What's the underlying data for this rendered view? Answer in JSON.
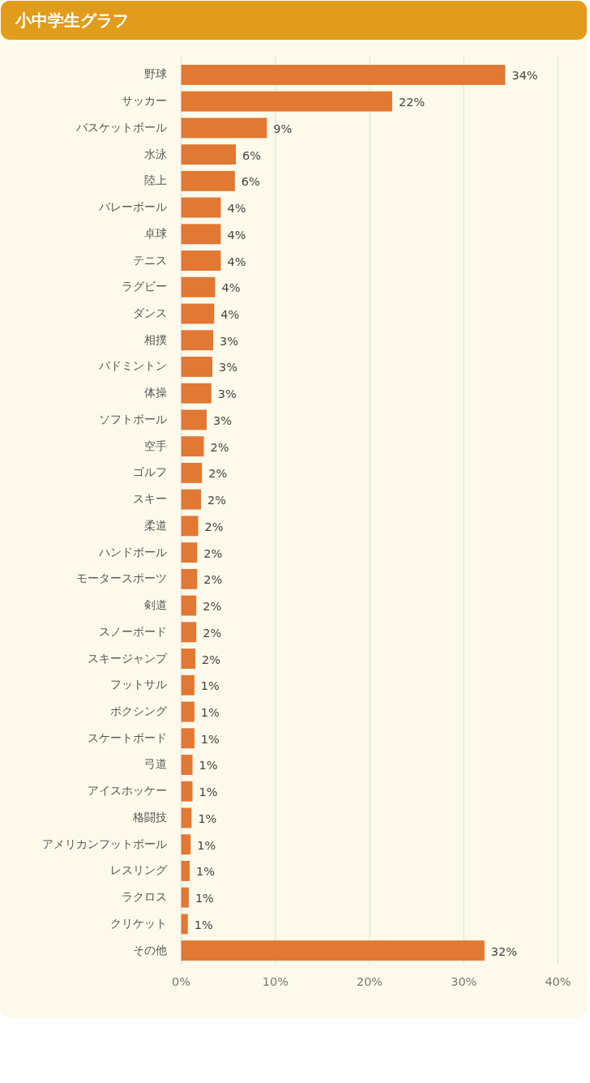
{
  "chart_data": {
    "type": "bar",
    "orientation": "horizontal",
    "title": "小中学生グラフ",
    "categories": [
      "野球",
      "サッカー",
      "バスケットボール",
      "水泳",
      "陸上",
      "バレーボール",
      "卓球",
      "テニス",
      "ラグビー",
      "ダンス",
      "相撲",
      "バドミントン",
      "体操",
      "ソフトボール",
      "空手",
      "ゴルフ",
      "スキー",
      "柔道",
      "ハンドボール",
      "モータースポーツ",
      "剣道",
      "スノーボード",
      "スキージャンプ",
      "フットサル",
      "ボクシング",
      "スケートボード",
      "弓道",
      "アイスホッケー",
      "格闘技",
      "アメリカンフットボール",
      "レスリング",
      "ラクロス",
      "クリケット",
      "その他"
    ],
    "values": [
      34.4,
      22.4,
      9.1,
      5.8,
      5.7,
      4.2,
      4.2,
      4.2,
      3.6,
      3.5,
      3.4,
      3.3,
      3.2,
      2.7,
      2.4,
      2.2,
      2.1,
      1.8,
      1.7,
      1.7,
      1.6,
      1.6,
      1.5,
      1.4,
      1.4,
      1.4,
      1.2,
      1.2,
      1.1,
      1.0,
      0.9,
      0.8,
      0.7,
      32.2
    ],
    "value_labels": [
      "34%",
      "22%",
      "9%",
      "6%",
      "6%",
      "4%",
      "4%",
      "4%",
      "4%",
      "4%",
      "3%",
      "3%",
      "3%",
      "3%",
      "2%",
      "2%",
      "2%",
      "2%",
      "2%",
      "2%",
      "2%",
      "2%",
      "2%",
      "1%",
      "1%",
      "1%",
      "1%",
      "1%",
      "1%",
      "1%",
      "1%",
      "1%",
      "1%",
      "32%"
    ],
    "color": "#e17833",
    "xlim": [
      0,
      40
    ],
    "xticks": [
      {
        "value": 0,
        "label": "0%"
      },
      {
        "value": 10,
        "label": "10%"
      },
      {
        "value": 20,
        "label": "20%"
      },
      {
        "value": 30,
        "label": "30%"
      },
      {
        "value": 40,
        "label": "40%"
      }
    ],
    "grid": "x"
  }
}
